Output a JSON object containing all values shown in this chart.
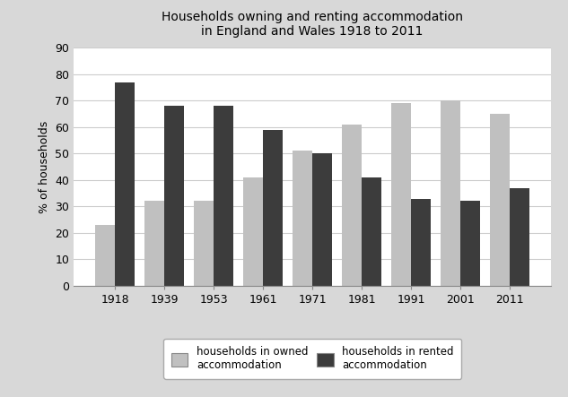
{
  "title": "Households owning and renting accommodation\nin England and Wales 1918 to 2011",
  "years": [
    "1918",
    "1939",
    "1953",
    "1961",
    "1971",
    "1981",
    "1991",
    "2001",
    "2011"
  ],
  "owned": [
    23,
    32,
    32,
    41,
    51,
    61,
    69,
    70,
    65
  ],
  "rented": [
    77,
    68,
    68,
    59,
    50,
    41,
    33,
    32,
    37
  ],
  "owned_color": "#c0c0c0",
  "rented_color": "#3c3c3c",
  "ylabel": "% of households",
  "ylim": [
    0,
    90
  ],
  "yticks": [
    0,
    10,
    20,
    30,
    40,
    50,
    60,
    70,
    80,
    90
  ],
  "legend_owned": "households in owned\naccommodation",
  "legend_rented": "households in rented\naccommodation",
  "fig_facecolor": "#d8d8d8",
  "ax_facecolor": "#ffffff",
  "title_fontsize": 10,
  "axis_fontsize": 9,
  "legend_fontsize": 8.5
}
